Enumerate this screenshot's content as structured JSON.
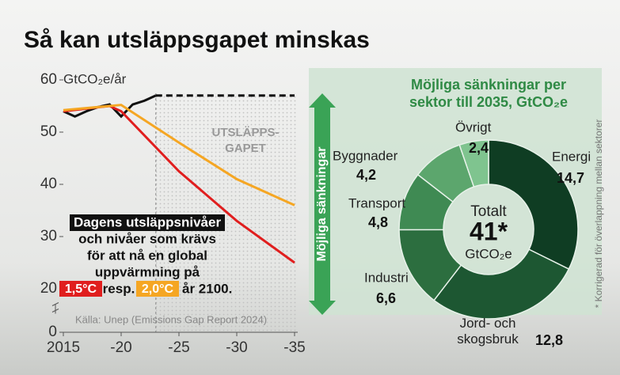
{
  "title": "Så kan utsläppsgapet minskas",
  "source": "Källa: Unep (Emissions Gap Report 2024)",
  "side_note": "* Korrigerad för överlappning mellan sektorer",
  "chart_data": [
    {
      "type": "line",
      "y_unit_label": "GtCO₂e/år",
      "xlim": [
        2015,
        2035
      ],
      "xticks": [
        {
          "value": 2015,
          "label": "2015"
        },
        {
          "value": 2020,
          "label": "-20"
        },
        {
          "value": 2025,
          "label": "-25"
        },
        {
          "value": 2030,
          "label": "-30"
        },
        {
          "value": 2035,
          "label": "-35"
        }
      ],
      "ylim": [
        0,
        60
      ],
      "yticks": [
        0,
        20,
        30,
        40,
        50,
        60
      ],
      "axis_break": [
        0,
        20
      ],
      "gap_label": [
        "UTSLÄPPS-",
        "GAPET"
      ],
      "gap_from": 2023,
      "series": [
        {
          "name": "Dagens utsläppsnivåer",
          "color": "#111111",
          "dashed_after": 2023,
          "x": [
            2015,
            2016,
            2017,
            2018,
            2019,
            2020,
            2021,
            2022,
            2023,
            2035
          ],
          "values": [
            54,
            53,
            54,
            54.8,
            55.3,
            53,
            55.3,
            56,
            57,
            57
          ]
        },
        {
          "name": "1,5°C",
          "color": "#e01e1e",
          "x": [
            2015,
            2019,
            2020,
            2025,
            2030,
            2035
          ],
          "values": [
            54,
            55,
            54,
            42.5,
            33,
            25
          ]
        },
        {
          "name": "2,0°C",
          "color": "#f5a623",
          "x": [
            2015,
            2020,
            2025,
            2030,
            2035
          ],
          "values": [
            54.2,
            55.2,
            48,
            41,
            36
          ]
        }
      ],
      "annotation": {
        "lines": [
          "och nivåer som krävs",
          "för att nå en global",
          "uppvärmning på"
        ],
        "between": "resp.",
        "end": "år 2100."
      }
    },
    {
      "type": "pie",
      "title": [
        "Möjliga sänkningar per",
        "sektor till 2035, GtCO₂e"
      ],
      "side_label": "Möjliga sänkningar",
      "center": [
        "Totalt",
        "41*",
        "GtCO₂e"
      ],
      "categories": [
        "Energi",
        "Jord- och skogsbruk",
        "Industri",
        "Transport",
        "Byggnader",
        "Övrigt"
      ],
      "values": [
        14.7,
        12.8,
        6.6,
        4.8,
        4.2,
        2.4
      ],
      "value_labels": [
        "14,7",
        "12,8",
        "6,6",
        "4,8",
        "4,2",
        "2,4"
      ],
      "colors": [
        "#0f3d23",
        "#1d5732",
        "#2c6e3f",
        "#3f8a53",
        "#5ca66d",
        "#7fc48f"
      ]
    }
  ]
}
